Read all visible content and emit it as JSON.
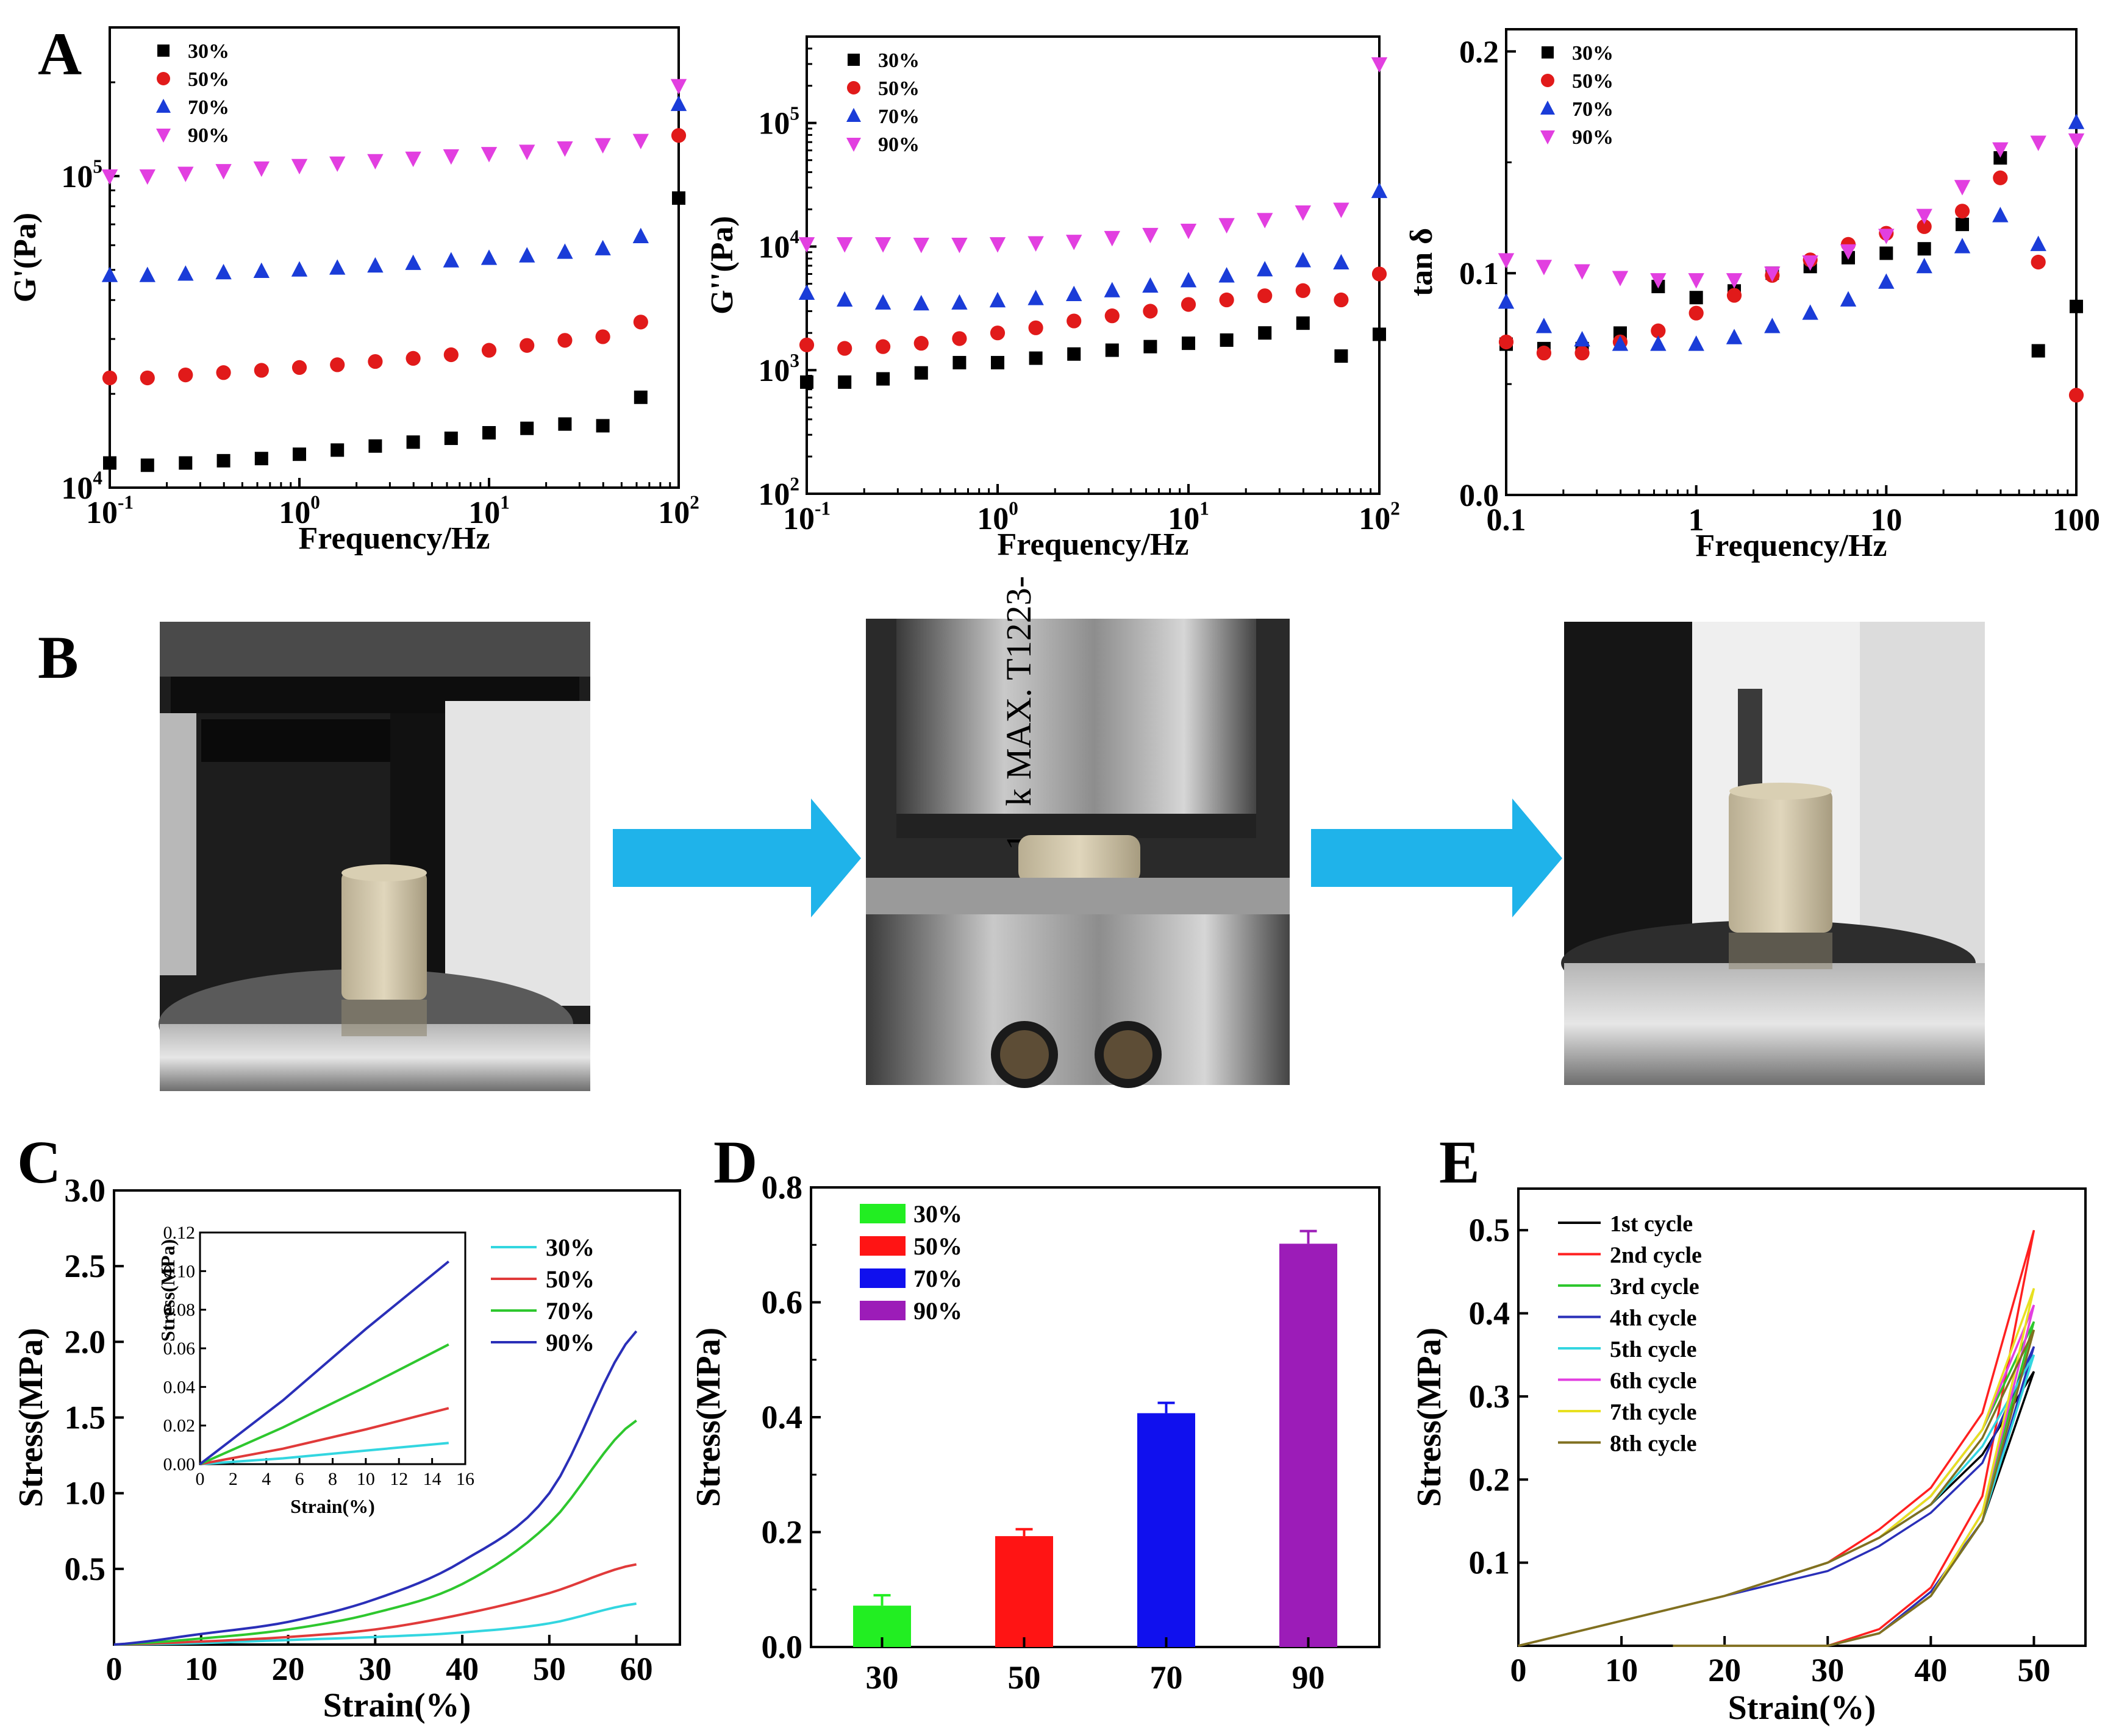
{
  "panel_letters": {
    "A": "A",
    "B": "B",
    "C": "C",
    "D": "D",
    "E": "E"
  },
  "arrow_color": "#1fb3ea",
  "photos": [
    {
      "description_icon": "rheometer-sample-before-compression-photo"
    },
    {
      "description_icon": "rheometer-sample-compressed-photo",
      "engraving": "10 k  MAX.  T1223-"
    },
    {
      "description_icon": "rheometer-sample-recovered-photo"
    }
  ],
  "chart_data": [
    {
      "id": "A1",
      "type": "scatter",
      "ylabel": "G'(Pa)",
      "xlabel": "Frequency/Hz",
      "xscale": "log",
      "yscale": "log",
      "xlim": [
        0.1,
        100
      ],
      "ylim": [
        10000,
        300000
      ],
      "xticks": [
        {
          "v": 0.1,
          "b": "10",
          "e": "-1"
        },
        {
          "v": 1,
          "b": "10",
          "e": "0"
        },
        {
          "v": 10,
          "b": "10",
          "e": "1"
        },
        {
          "v": 100,
          "b": "10",
          "e": "2"
        }
      ],
      "yticks": [
        {
          "v": 10000,
          "b": "10",
          "e": "4"
        },
        {
          "v": 100000,
          "b": "10",
          "e": "5"
        }
      ],
      "x": [
        0.1,
        0.158,
        0.251,
        0.398,
        0.631,
        1,
        1.585,
        2.512,
        3.981,
        6.31,
        10,
        15.85,
        25.12,
        39.81,
        63.1,
        100
      ],
      "series": [
        {
          "name": "30%",
          "color": "#000000",
          "marker": "square",
          "values": [
            12000,
            11800,
            12000,
            12200,
            12400,
            12800,
            13200,
            13600,
            14000,
            14400,
            15000,
            15500,
            16000,
            15800,
            19500,
            85000
          ]
        },
        {
          "name": "50%",
          "color": "#e11a1a",
          "marker": "circle",
          "values": [
            22500,
            22500,
            23000,
            23400,
            23800,
            24300,
            24800,
            25400,
            26000,
            26700,
            27600,
            28600,
            29700,
            30500,
            34000,
            135000
          ]
        },
        {
          "name": "70%",
          "color": "#1a3cd8",
          "marker": "triangle",
          "values": [
            48000,
            48000,
            48500,
            49000,
            49500,
            50000,
            50700,
            51500,
            52500,
            53500,
            54500,
            55500,
            57000,
            58500,
            64000,
            170000
          ]
        },
        {
          "name": "90%",
          "color": "#e23fe0",
          "marker": "triangle-down",
          "values": [
            100000,
            100000,
            102000,
            104000,
            106000,
            108000,
            110000,
            112000,
            114000,
            116000,
            118000,
            120000,
            123000,
            126000,
            130000,
            195000
          ]
        }
      ]
    },
    {
      "id": "A2",
      "type": "scatter",
      "ylabel": "G''(Pa)",
      "xlabel": "Frequency/Hz",
      "xscale": "log",
      "yscale": "log",
      "xlim": [
        0.1,
        100
      ],
      "ylim": [
        100,
        500000
      ],
      "xticks": [
        {
          "v": 0.1,
          "b": "10",
          "e": "-1"
        },
        {
          "v": 1,
          "b": "10",
          "e": "0"
        },
        {
          "v": 10,
          "b": "10",
          "e": "1"
        },
        {
          "v": 100,
          "b": "10",
          "e": "2"
        }
      ],
      "yticks": [
        {
          "v": 100,
          "b": "10",
          "e": "2"
        },
        {
          "v": 1000,
          "b": "10",
          "e": "3"
        },
        {
          "v": 10000,
          "b": "10",
          "e": "4"
        },
        {
          "v": 100000,
          "b": "10",
          "e": "5"
        }
      ],
      "x": [
        0.1,
        0.158,
        0.251,
        0.398,
        0.631,
        1,
        1.585,
        2.512,
        3.981,
        6.31,
        10,
        15.85,
        25.12,
        39.81,
        63.1,
        100
      ],
      "series": [
        {
          "name": "30%",
          "color": "#000000",
          "marker": "square",
          "values": [
            800,
            800,
            850,
            950,
            1150,
            1150,
            1250,
            1350,
            1450,
            1550,
            1650,
            1750,
            2000,
            2400,
            1300,
            1950
          ]
        },
        {
          "name": "50%",
          "color": "#e11a1a",
          "marker": "circle",
          "values": [
            1600,
            1500,
            1550,
            1650,
            1800,
            2000,
            2200,
            2500,
            2750,
            3000,
            3400,
            3700,
            4000,
            4400,
            3700,
            6000
          ]
        },
        {
          "name": "70%",
          "color": "#1a3cd8",
          "marker": "triangle",
          "values": [
            4200,
            3700,
            3500,
            3450,
            3500,
            3650,
            3800,
            4100,
            4400,
            4800,
            5300,
            5800,
            6500,
            7700,
            7400,
            28000
          ]
        },
        {
          "name": "90%",
          "color": "#e23fe0",
          "marker": "triangle-down",
          "values": [
            10500,
            10500,
            10500,
            10400,
            10400,
            10500,
            10700,
            11000,
            11800,
            12500,
            13500,
            15000,
            16500,
            19000,
            20000,
            300000
          ]
        }
      ]
    },
    {
      "id": "A3",
      "type": "scatter",
      "ylabel": "tan δ",
      "xlabel": "Frequency/Hz",
      "xscale": "log",
      "yscale": "linear",
      "xlim": [
        0.1,
        100
      ],
      "ylim": [
        0,
        0.21
      ],
      "xticks": [
        {
          "v": 0.1,
          "t": "0.1"
        },
        {
          "v": 1,
          "t": "1"
        },
        {
          "v": 10,
          "t": "10"
        },
        {
          "v": 100,
          "t": "100"
        }
      ],
      "yticks": [
        {
          "v": 0,
          "t": "0.0"
        },
        {
          "v": 0.1,
          "t": "0.1"
        },
        {
          "v": 0.2,
          "t": "0.2"
        }
      ],
      "x": [
        0.1,
        0.158,
        0.251,
        0.398,
        0.631,
        1,
        1.585,
        2.512,
        3.981,
        6.31,
        10,
        15.85,
        25.12,
        39.81,
        63.1,
        100
      ],
      "series": [
        {
          "name": "30%",
          "color": "#000000",
          "marker": "square",
          "values": [
            0.068,
            0.066,
            0.066,
            0.073,
            0.094,
            0.089,
            0.092,
            0.1,
            0.103,
            0.107,
            0.109,
            0.111,
            0.122,
            0.152,
            0.065,
            0.085
          ]
        },
        {
          "name": "50%",
          "color": "#e11a1a",
          "marker": "circle",
          "values": [
            0.069,
            0.064,
            0.064,
            0.069,
            0.074,
            0.082,
            0.09,
            0.099,
            0.106,
            0.113,
            0.118,
            0.121,
            0.128,
            0.143,
            0.105,
            0.045
          ]
        },
        {
          "name": "70%",
          "color": "#1a3cd8",
          "marker": "triangle",
          "values": [
            0.087,
            0.076,
            0.07,
            0.068,
            0.068,
            0.068,
            0.071,
            0.076,
            0.082,
            0.088,
            0.096,
            0.103,
            0.112,
            0.126,
            0.113,
            0.168
          ]
        },
        {
          "name": "90%",
          "color": "#e23fe0",
          "marker": "triangle-down",
          "values": [
            0.106,
            0.103,
            0.101,
            0.098,
            0.097,
            0.097,
            0.097,
            0.1,
            0.105,
            0.11,
            0.117,
            0.126,
            0.139,
            0.156,
            0.159,
            0.16
          ]
        }
      ]
    },
    {
      "id": "C",
      "type": "line",
      "ylabel": "Stress(MPa)",
      "xlabel": "Strain(%)",
      "xlim": [
        0,
        65
      ],
      "ylim": [
        0,
        3.0
      ],
      "xticks": [
        0,
        10,
        20,
        30,
        40,
        50,
        60
      ],
      "yticks": [
        {
          "v": 0.5,
          "t": "0.5"
        },
        {
          "v": 1.0,
          "t": "1.0"
        },
        {
          "v": 1.5,
          "t": "1.5"
        },
        {
          "v": 2.0,
          "t": "2.0"
        },
        {
          "v": 2.5,
          "t": "2.5"
        },
        {
          "v": 3.0,
          "t": "3.0"
        }
      ],
      "x": [
        0,
        10,
        20,
        30,
        40,
        50,
        60
      ],
      "series": [
        {
          "name": "30%",
          "color": "#33d6e0",
          "values": [
            0,
            0.01,
            0.03,
            0.05,
            0.08,
            0.14,
            0.27
          ]
        },
        {
          "name": "50%",
          "color": "#e03a3a",
          "values": [
            0,
            0.02,
            0.05,
            0.1,
            0.2,
            0.34,
            0.53
          ]
        },
        {
          "name": "70%",
          "color": "#2ec72e",
          "values": [
            0,
            0.04,
            0.1,
            0.21,
            0.4,
            0.8,
            1.48
          ]
        },
        {
          "name": "90%",
          "color": "#2a2fb8",
          "values": [
            0,
            0.07,
            0.15,
            0.3,
            0.55,
            1.0,
            2.07
          ]
        }
      ],
      "inset": {
        "ylabel": "Stress(MPa)",
        "xlabel": "Strain(%)",
        "xlim": [
          0,
          16
        ],
        "ylim": [
          0,
          0.12
        ],
        "xticks": [
          0,
          2,
          4,
          6,
          8,
          10,
          12,
          14,
          16
        ],
        "yticks": [
          {
            "v": 0,
            "t": "0.00"
          },
          {
            "v": 0.02,
            "t": "0.02"
          },
          {
            "v": 0.04,
            "t": "0.04"
          },
          {
            "v": 0.06,
            "t": "0.06"
          },
          {
            "v": 0.08,
            "t": "0.08"
          },
          {
            "v": 0.1,
            "t": "0.10"
          },
          {
            "v": 0.12,
            "t": "0.12"
          }
        ],
        "x": [
          0,
          5,
          10,
          15
        ],
        "series": [
          {
            "name": "30%",
            "color": "#33d6e0",
            "values": [
              0,
              0.003,
              0.007,
              0.011
            ]
          },
          {
            "name": "50%",
            "color": "#e03a3a",
            "values": [
              0,
              0.008,
              0.018,
              0.029
            ]
          },
          {
            "name": "70%",
            "color": "#2ec72e",
            "values": [
              0,
              0.019,
              0.04,
              0.062
            ]
          },
          {
            "name": "90%",
            "color": "#2a2fb8",
            "values": [
              0,
              0.033,
              0.07,
              0.105
            ]
          }
        ]
      }
    },
    {
      "id": "D",
      "type": "bar",
      "ylabel": "Stress(MPa)",
      "xlabel": "",
      "ylim": [
        0,
        0.8
      ],
      "yticks": [
        {
          "v": 0,
          "t": "0.0"
        },
        {
          "v": 0.2,
          "t": "0.2"
        },
        {
          "v": 0.4,
          "t": "0.4"
        },
        {
          "v": 0.6,
          "t": "0.6"
        },
        {
          "v": 0.8,
          "t": "0.8"
        }
      ],
      "categories": [
        "30",
        "50",
        "70",
        "90"
      ],
      "values": [
        0.072,
        0.193,
        0.407,
        0.702
      ],
      "errors": [
        0.018,
        0.012,
        0.018,
        0.022
      ],
      "legend": [
        {
          "name": "30%",
          "color": "#22ee22"
        },
        {
          "name": "50%",
          "color": "#ff1414"
        },
        {
          "name": "70%",
          "color": "#1010ee"
        },
        {
          "name": "90%",
          "color": "#9c1cb8"
        }
      ]
    },
    {
      "id": "E",
      "type": "line",
      "ylabel": "Stress(MPa)",
      "xlabel": "Strain(%)",
      "xlim": [
        0,
        55
      ],
      "ylim": [
        0,
        0.55
      ],
      "xticks": [
        0,
        10,
        20,
        30,
        40,
        50
      ],
      "yticks": [
        {
          "v": 0.1,
          "t": "0.1"
        },
        {
          "v": 0.2,
          "t": "0.2"
        },
        {
          "v": 0.3,
          "t": "0.3"
        },
        {
          "v": 0.4,
          "t": "0.4"
        },
        {
          "v": 0.5,
          "t": "0.5"
        }
      ],
      "x": [
        0,
        10,
        20,
        30,
        35,
        40,
        45,
        50
      ],
      "series": [
        {
          "name": "1st cycle",
          "color": "#000000",
          "values": [
            0,
            0.03,
            0.06,
            0.1,
            0.13,
            0.17,
            0.23,
            0.33
          ],
          "unload": [
            0.33,
            0.15,
            0.06,
            0.015,
            0,
            0,
            0,
            0
          ]
        },
        {
          "name": "2nd cycle",
          "color": "#ff2020",
          "values": [
            0,
            0.03,
            0.06,
            0.1,
            0.14,
            0.19,
            0.28,
            0.5
          ],
          "unload": [
            0.5,
            0.18,
            0.07,
            0.02,
            0,
            0,
            0,
            0
          ]
        },
        {
          "name": "3rd cycle",
          "color": "#2ec72e",
          "values": [
            0,
            0.03,
            0.06,
            0.1,
            0.13,
            0.18,
            0.26,
            0.39
          ],
          "unload": [
            0.39,
            0.16,
            0.06,
            0.015,
            0,
            0,
            0,
            0
          ]
        },
        {
          "name": "4th cycle",
          "color": "#2a2fb8",
          "values": [
            0,
            0.03,
            0.06,
            0.09,
            0.12,
            0.16,
            0.22,
            0.36
          ],
          "unload": [
            0.36,
            0.15,
            0.065,
            0.015,
            0,
            0,
            0,
            0
          ]
        },
        {
          "name": "5th cycle",
          "color": "#33d6e0",
          "values": [
            0,
            0.03,
            0.06,
            0.1,
            0.13,
            0.17,
            0.24,
            0.35
          ],
          "unload": [
            0.35,
            0.15,
            0.06,
            0.015,
            0,
            0,
            0,
            0
          ]
        },
        {
          "name": "6th cycle",
          "color": "#e23fe0",
          "values": [
            0,
            0.03,
            0.06,
            0.1,
            0.13,
            0.18,
            0.26,
            0.41
          ],
          "unload": [
            0.41,
            0.16,
            0.06,
            0.015,
            0,
            0,
            0,
            0
          ]
        },
        {
          "name": "7th cycle",
          "color": "#e8e020",
          "values": [
            0,
            0.03,
            0.06,
            0.1,
            0.13,
            0.18,
            0.26,
            0.43
          ],
          "unload": [
            0.43,
            0.16,
            0.06,
            0.015,
            0,
            0,
            0,
            0
          ]
        },
        {
          "name": "8th cycle",
          "color": "#807020",
          "values": [
            0,
            0.03,
            0.06,
            0.1,
            0.13,
            0.17,
            0.25,
            0.38
          ],
          "unload": [
            0.38,
            0.15,
            0.06,
            0.015,
            0,
            0,
            0,
            0
          ]
        }
      ]
    }
  ]
}
